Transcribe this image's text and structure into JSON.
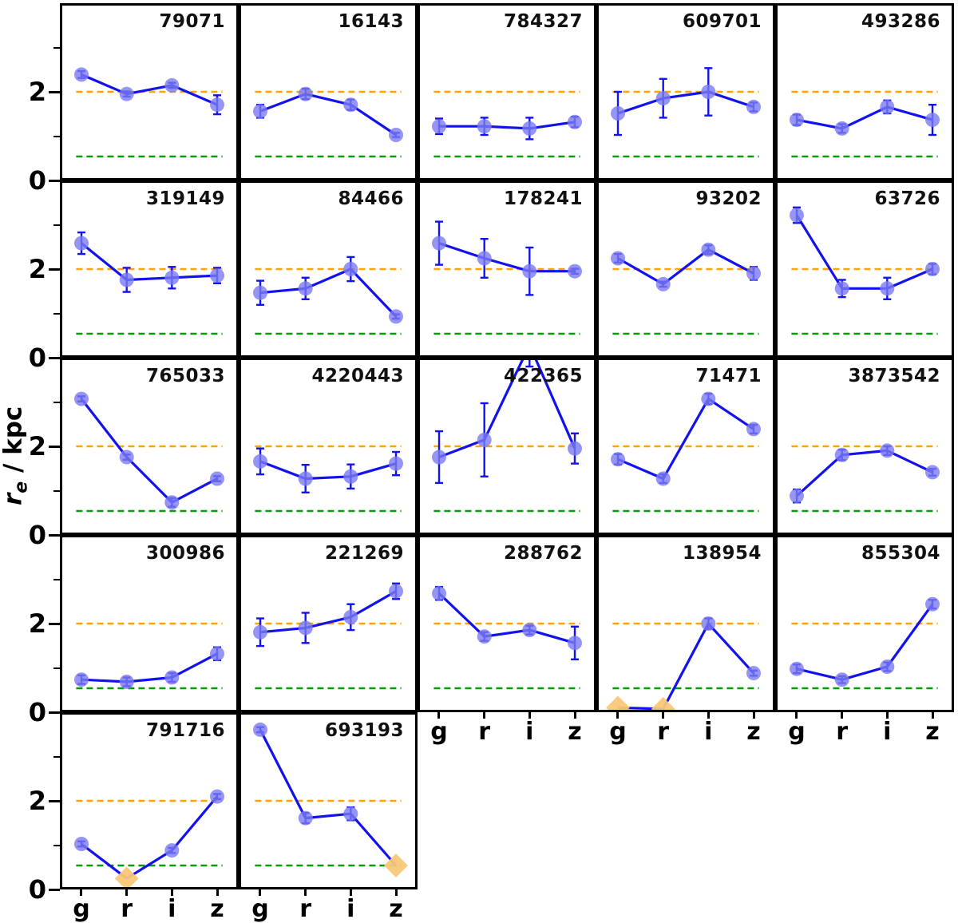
{
  "axis": {
    "ylabel_symbol": "r",
    "ylabel_subscript": "e",
    "ylabel_rest": " / kpc",
    "ytick_major_labels": [
      "0",
      "2"
    ],
    "xticklabels": [
      "g",
      "r",
      "i",
      "z"
    ]
  },
  "style": {
    "line_color": "#1212ee",
    "marker_color": "#7b7bf2",
    "diamond_color": "#f8c878",
    "orange_ref_color": "#ffa500",
    "green_ref_color": "#0b9a0b",
    "border_color": "#000000",
    "text_color": "#111111"
  },
  "chart_data": {
    "type": "line",
    "x_categories": [
      "g",
      "r",
      "i",
      "z"
    ],
    "ylabel": "r_e / kpc",
    "ylim": [
      0,
      4
    ],
    "yticks_major": [
      0,
      2
    ],
    "yticks_minor": [
      1,
      3
    ],
    "grid": {
      "rows": 5,
      "cols": 5
    },
    "reference_lines": [
      {
        "y": 2.0,
        "color": "#ffa500",
        "style": "dashed",
        "name": "orange-reference"
      },
      {
        "y": 0.5,
        "color": "#0b9a0b",
        "style": "dashed",
        "name": "green-reference"
      }
    ],
    "legend": null,
    "panels": [
      {
        "id": "79071",
        "row": 0,
        "col": 0,
        "values": [
          2.4,
          1.95,
          2.15,
          1.7
        ],
        "errors": [
          0.08,
          0.06,
          0.06,
          0.22
        ],
        "diamond": [
          false,
          false,
          false,
          false
        ]
      },
      {
        "id": "16143",
        "row": 0,
        "col": 1,
        "values": [
          1.55,
          1.95,
          1.7,
          1.0
        ],
        "errors": [
          0.15,
          0.12,
          0.12,
          0.05
        ],
        "diamond": [
          false,
          false,
          false,
          false
        ]
      },
      {
        "id": "784327",
        "row": 0,
        "col": 2,
        "values": [
          1.2,
          1.2,
          1.15,
          1.3
        ],
        "errors": [
          0.18,
          0.2,
          0.25,
          0.12
        ],
        "diamond": [
          false,
          false,
          false,
          false
        ]
      },
      {
        "id": "609701",
        "row": 0,
        "col": 3,
        "values": [
          1.5,
          1.85,
          2.0,
          1.65
        ],
        "errors": [
          0.5,
          0.45,
          0.55,
          0.1
        ],
        "diamond": [
          false,
          false,
          false,
          false
        ]
      },
      {
        "id": "493286",
        "row": 0,
        "col": 4,
        "values": [
          1.35,
          1.15,
          1.65,
          1.35
        ],
        "errors": [
          0.12,
          0.1,
          0.15,
          0.35
        ],
        "diamond": [
          false,
          false,
          false,
          false
        ]
      },
      {
        "id": "319149",
        "row": 1,
        "col": 0,
        "values": [
          2.6,
          1.75,
          1.8,
          1.85
        ],
        "errors": [
          0.25,
          0.28,
          0.25,
          0.18
        ],
        "diamond": [
          false,
          false,
          false,
          false
        ]
      },
      {
        "id": "84466",
        "row": 1,
        "col": 1,
        "values": [
          1.45,
          1.55,
          2.0,
          0.9
        ],
        "errors": [
          0.28,
          0.25,
          0.28,
          0.05
        ],
        "diamond": [
          false,
          false,
          false,
          false
        ]
      },
      {
        "id": "178241",
        "row": 1,
        "col": 2,
        "values": [
          2.6,
          2.25,
          1.95,
          1.95
        ],
        "errors": [
          0.5,
          0.45,
          0.55,
          0.06
        ],
        "diamond": [
          false,
          false,
          false,
          false
        ]
      },
      {
        "id": "93202",
        "row": 1,
        "col": 3,
        "values": [
          2.25,
          1.65,
          2.45,
          1.9
        ],
        "errors": [
          0.1,
          0.06,
          0.1,
          0.15
        ],
        "diamond": [
          false,
          false,
          false,
          false
        ]
      },
      {
        "id": "63726",
        "row": 1,
        "col": 4,
        "values": [
          3.25,
          1.55,
          1.55,
          2.0
        ],
        "errors": [
          0.18,
          0.2,
          0.25,
          0.12
        ],
        "diamond": [
          false,
          false,
          false,
          false
        ]
      },
      {
        "id": "765033",
        "row": 2,
        "col": 0,
        "values": [
          3.1,
          1.75,
          0.7,
          1.25
        ],
        "errors": [
          0.06,
          0.06,
          0.1,
          0.06
        ],
        "diamond": [
          false,
          false,
          false,
          false
        ]
      },
      {
        "id": "4220443",
        "row": 2,
        "col": 1,
        "values": [
          1.65,
          1.25,
          1.3,
          1.6
        ],
        "errors": [
          0.3,
          0.32,
          0.28,
          0.27
        ],
        "diamond": [
          false,
          false,
          false,
          false
        ]
      },
      {
        "id": "422365",
        "row": 2,
        "col": 2,
        "values": [
          1.75,
          2.15,
          4.35,
          1.95
        ],
        "errors": [
          0.6,
          0.85,
          0.5,
          0.35
        ],
        "diamond": [
          false,
          false,
          false,
          false
        ]
      },
      {
        "id": "71471",
        "row": 2,
        "col": 3,
        "values": [
          1.7,
          1.25,
          3.1,
          2.4
        ],
        "errors": [
          0.12,
          0.1,
          0.12,
          0.1
        ],
        "diamond": [
          false,
          false,
          false,
          false
        ]
      },
      {
        "id": "3873542",
        "row": 2,
        "col": 4,
        "values": [
          0.85,
          1.8,
          1.9,
          1.4
        ],
        "errors": [
          0.15,
          0.12,
          0.1,
          0.08
        ],
        "diamond": [
          false,
          false,
          false,
          false
        ]
      },
      {
        "id": "300986",
        "row": 3,
        "col": 0,
        "values": [
          0.7,
          0.65,
          0.75,
          1.3
        ],
        "errors": [
          0.1,
          0.1,
          0.1,
          0.15
        ],
        "diamond": [
          false,
          false,
          false,
          false
        ]
      },
      {
        "id": "221269",
        "row": 3,
        "col": 1,
        "values": [
          1.8,
          1.9,
          2.15,
          2.75
        ],
        "errors": [
          0.32,
          0.35,
          0.3,
          0.18
        ],
        "diamond": [
          false,
          false,
          false,
          false
        ]
      },
      {
        "id": "288762",
        "row": 3,
        "col": 2,
        "values": [
          2.7,
          1.7,
          1.85,
          1.55
        ],
        "errors": [
          0.15,
          0.1,
          0.1,
          0.38
        ],
        "diamond": [
          false,
          false,
          false,
          false
        ]
      },
      {
        "id": "138954",
        "row": 3,
        "col": 3,
        "values": [
          0.05,
          0.02,
          2.0,
          0.85
        ],
        "errors": [
          0.0,
          0.0,
          0.12,
          0.06
        ],
        "diamond": [
          true,
          true,
          false,
          false
        ]
      },
      {
        "id": "855304",
        "row": 3,
        "col": 4,
        "values": [
          0.95,
          0.7,
          1.0,
          2.45
        ],
        "errors": [
          0.1,
          0.08,
          0.1,
          0.1
        ],
        "diamond": [
          false,
          false,
          false,
          false
        ]
      },
      {
        "id": "791716",
        "row": 4,
        "col": 0,
        "values": [
          1.0,
          0.2,
          0.85,
          2.1
        ],
        "errors": [
          0.06,
          0.0,
          0.06,
          0.06
        ],
        "diamond": [
          false,
          true,
          false,
          false
        ]
      },
      {
        "id": "693193",
        "row": 4,
        "col": 1,
        "values": [
          3.65,
          1.6,
          1.7,
          0.5
        ],
        "errors": [
          0.06,
          0.12,
          0.15,
          0.0
        ],
        "diamond": [
          false,
          false,
          false,
          true
        ]
      }
    ],
    "xlabel_strips": [
      {
        "cols": [
          2,
          3,
          4
        ],
        "below_row": 3
      },
      {
        "cols": [
          0,
          1
        ],
        "below_row": 4
      }
    ]
  }
}
